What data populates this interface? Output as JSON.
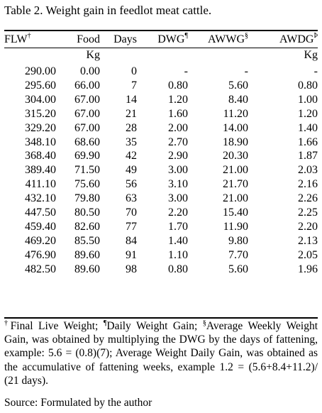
{
  "title": "Table 2. Weight gain in feedlot meat cattle.",
  "columns": [
    {
      "label": "FLW",
      "mark": "†",
      "unit": ""
    },
    {
      "label": "Food",
      "mark": "",
      "unit": "Kg"
    },
    {
      "label": "Days",
      "mark": "",
      "unit": ""
    },
    {
      "label": "DWG",
      "mark": "¶",
      "unit": ""
    },
    {
      "label": "AWWG",
      "mark": "§",
      "unit": ""
    },
    {
      "label": "AWDG",
      "mark": "Þ",
      "unit": "Kg"
    }
  ],
  "rows": [
    [
      "290.00",
      "0.00",
      "0",
      "-",
      "-",
      "-"
    ],
    [
      "295.60",
      "66.00",
      "7",
      "0.80",
      "5.60",
      "0.80"
    ],
    [
      "304.00",
      "67.00",
      "14",
      "1.20",
      "8.40",
      "1.00"
    ],
    [
      "315.20",
      "67.00",
      "21",
      "1.60",
      "11.20",
      "1.20"
    ],
    [
      "329.20",
      "67.00",
      "28",
      "2.00",
      "14.00",
      "1.40"
    ],
    [
      "348.10",
      "68.60",
      "35",
      "2.70",
      "18.90",
      "1.66"
    ],
    [
      "368.40",
      "69.90",
      "42",
      "2.90",
      "20.30",
      "1.87"
    ],
    [
      "389.40",
      "71.50",
      "49",
      "3.00",
      "21.00",
      "2.03"
    ],
    [
      "411.10",
      "75.60",
      "56",
      "3.10",
      "21.70",
      "2.16"
    ],
    [
      "432.10",
      "79.80",
      "63",
      "3.00",
      "21.00",
      "2.26"
    ],
    [
      "447.50",
      "80.50",
      "70",
      "2.20",
      "15.40",
      "2.25"
    ],
    [
      "459.40",
      "82.60",
      "77",
      "1.70",
      "11.90",
      "2.20"
    ],
    [
      "469.20",
      "85.50",
      "84",
      "1.40",
      "9.80",
      "2.13"
    ],
    [
      "476.90",
      "89.60",
      "91",
      "1.10",
      "7.70",
      "2.05"
    ],
    [
      "482.50",
      "89.60",
      "98",
      "0.80",
      "5.60",
      "1.96"
    ]
  ],
  "footnotes": {
    "flw_mark": "†",
    "flw_text": "Final Live Weight; ",
    "dwg_mark": "¶",
    "dwg_text": "Daily Weight Gain; ",
    "awwg_mark": "§",
    "awwg_text": "Average Weekly Weight Gain, was obtained by multiplying the DWG by the days of fattening, example: 5.6 = (0.8)(7); Average Weight Daily Gain, was obtained as the accumulative of fattening weeks, example 1.2 = (5.6+8.4+11.2)/ (21 days)."
  },
  "source": "Source: Formulated by the author"
}
